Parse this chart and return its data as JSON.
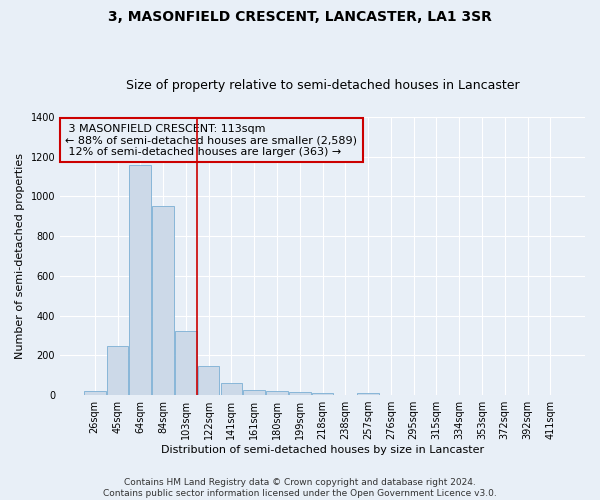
{
  "title": "3, MASONFIELD CRESCENT, LANCASTER, LA1 3SR",
  "subtitle": "Size of property relative to semi-detached houses in Lancaster",
  "xlabel": "Distribution of semi-detached houses by size in Lancaster",
  "ylabel": "Number of semi-detached properties",
  "footer_line1": "Contains HM Land Registry data © Crown copyright and database right 2024.",
  "footer_line2": "Contains public sector information licensed under the Open Government Licence v3.0.",
  "property_label": "3 MASONFIELD CRESCENT: 113sqm",
  "pct_smaller": 88,
  "n_smaller": 2589,
  "pct_larger": 12,
  "n_larger": 363,
  "bar_labels": [
    "26sqm",
    "45sqm",
    "64sqm",
    "84sqm",
    "103sqm",
    "122sqm",
    "141sqm",
    "161sqm",
    "180sqm",
    "199sqm",
    "218sqm",
    "238sqm",
    "257sqm",
    "276sqm",
    "295sqm",
    "315sqm",
    "334sqm",
    "353sqm",
    "372sqm",
    "392sqm",
    "411sqm"
  ],
  "bar_values": [
    20,
    248,
    1155,
    952,
    320,
    148,
    62,
    28,
    20,
    15,
    12,
    0,
    12,
    0,
    0,
    0,
    0,
    0,
    0,
    0,
    0
  ],
  "bar_color": "#ccd9e8",
  "bar_edge_color": "#7bafd4",
  "vline_color": "#cc0000",
  "vline_position": 4.5,
  "ylim": [
    0,
    1400
  ],
  "yticks": [
    0,
    200,
    400,
    600,
    800,
    1000,
    1200,
    1400
  ],
  "background_color": "#e8eff7",
  "grid_color": "#ffffff",
  "title_fontsize": 10,
  "subtitle_fontsize": 9,
  "axis_label_fontsize": 8,
  "tick_fontsize": 7,
  "annotation_fontsize": 8,
  "footer_fontsize": 6.5
}
